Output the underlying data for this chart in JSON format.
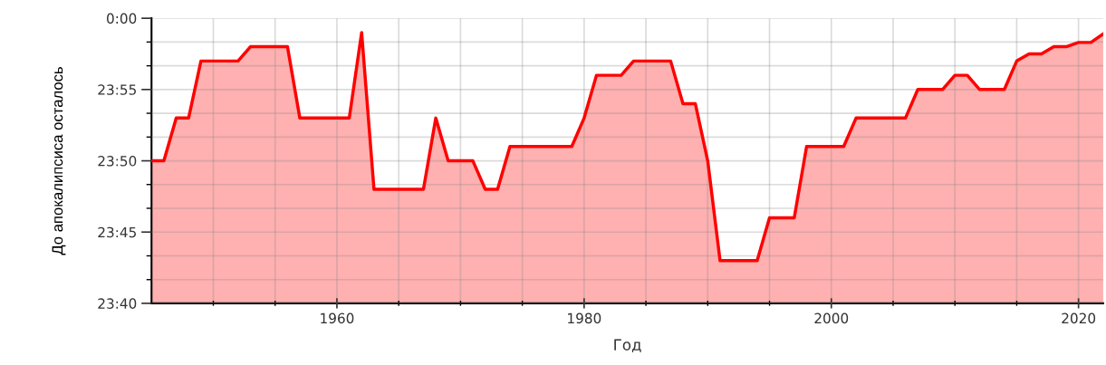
{
  "chart_data": {
    "type": "area",
    "xlabel": "Год",
    "ylabel": "До апокалипсиса осталось",
    "x": [
      1945,
      1946,
      1947,
      1948,
      1949,
      1952,
      1953,
      1956,
      1957,
      1961,
      1962,
      1963,
      1967,
      1968,
      1969,
      1971,
      1972,
      1973,
      1974,
      1979,
      1980,
      1981,
      1983,
      1984,
      1987,
      1988,
      1989,
      1990,
      1991,
      1994,
      1995,
      1997,
      1998,
      2001,
      2002,
      2006,
      2007,
      2009,
      2010,
      2011,
      2012,
      2014,
      2015,
      2016,
      2017,
      2018,
      2019,
      2020,
      2021,
      2022
    ],
    "series": [
      {
        "color": "#ff0000",
        "values": [
          23.8333,
          23.8333,
          23.8833,
          23.8833,
          23.95,
          23.95,
          23.9667,
          23.9667,
          23.8833,
          23.8833,
          23.9833,
          23.8,
          23.8,
          23.8833,
          23.8333,
          23.8333,
          23.8,
          23.8,
          23.85,
          23.85,
          23.8833,
          23.9333,
          23.9333,
          23.95,
          23.95,
          23.9,
          23.9,
          23.8333,
          23.7167,
          23.7167,
          23.7667,
          23.7667,
          23.85,
          23.85,
          23.8833,
          23.8833,
          23.9167,
          23.9167,
          23.9333,
          23.9333,
          23.9167,
          23.9167,
          23.95,
          23.9583,
          23.9583,
          23.9667,
          23.9667,
          23.9717,
          23.9717,
          23.9817
        ]
      }
    ],
    "xlim": [
      1945,
      2022
    ],
    "xticks": [
      {
        "value": 1950,
        "label": null
      },
      {
        "value": 1955,
        "label": null
      },
      1960,
      {
        "value": 1965,
        "label": null
      },
      {
        "value": 1970,
        "label": null
      },
      {
        "value": 1975,
        "label": null
      },
      1980,
      {
        "value": 1985,
        "label": null
      },
      {
        "value": 1990,
        "label": null
      },
      {
        "value": 1995,
        "label": null
      },
      2000,
      {
        "value": 2005,
        "label": null
      },
      {
        "value": 2010,
        "label": null
      },
      {
        "value": 2015,
        "label": null
      },
      2020
    ],
    "ylim": [
      23.6667,
      24
    ],
    "yticks": [
      {
        "value": 23.6667,
        "label": "23:40"
      },
      {
        "value": 23.6944,
        "label": null
      },
      {
        "value": 23.7222,
        "label": null
      },
      {
        "value": 23.75,
        "label": "23:45"
      },
      {
        "value": 23.7778,
        "label": null
      },
      {
        "value": 23.8056,
        "label": null
      },
      {
        "value": 23.8333,
        "label": "23:50"
      },
      {
        "value": 23.8611,
        "label": null
      },
      {
        "value": 23.8889,
        "label": null
      },
      {
        "value": 23.9167,
        "label": "23:55"
      },
      {
        "value": 23.9444,
        "label": null
      },
      {
        "value": 23.9722,
        "label": null
      },
      {
        "value": 24,
        "label": "0:00"
      }
    ],
    "grid": true
  }
}
